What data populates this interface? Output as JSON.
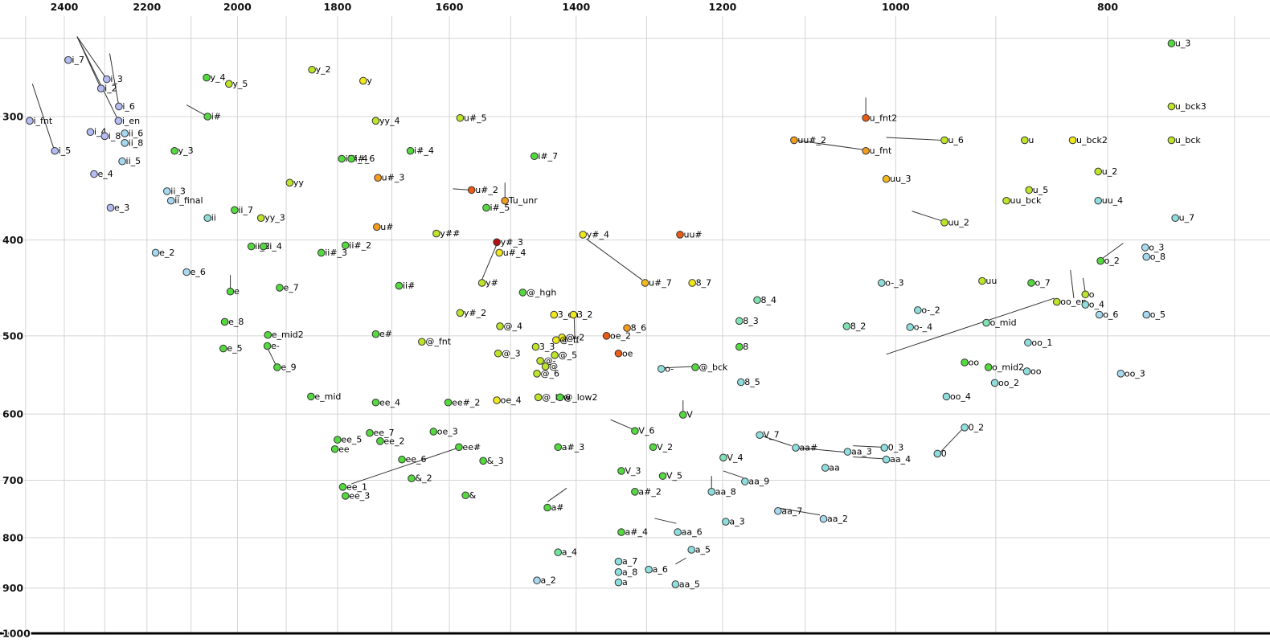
{
  "chart_data": {
    "type": "scatter",
    "title": "",
    "xlabel": "",
    "ylabel": "",
    "x_axis": {
      "reversed": true,
      "scale": "log",
      "tick_labels": [
        2400,
        2200,
        2000,
        1800,
        1600,
        1400,
        1200,
        1000,
        800
      ],
      "grid": [
        2500,
        2400,
        2300,
        2200,
        2100,
        2000,
        1900,
        1800,
        1700,
        1600,
        1500,
        1400,
        1300,
        1200,
        1100,
        1000,
        900,
        800,
        700
      ]
    },
    "y_axis": {
      "reversed": true,
      "scale": "log",
      "tick_labels": [
        300,
        400,
        500,
        600,
        700,
        800,
        900,
        1000
      ],
      "grid": [
        250,
        300,
        400,
        500,
        600,
        700,
        800,
        900,
        1000
      ],
      "baseline": 1000
    },
    "scale_anchors": {
      "x": {
        "v1": 2400,
        "p1": 80,
        "v2": 800,
        "p2": 1378
      },
      "y": {
        "v1": 300,
        "p1": 145,
        "v2": 1000,
        "p2": 788
      }
    },
    "palette": {
      "pw": "#b4bcf4",
      "lb": "#a6d9f0",
      "cy": "#8fdede",
      "aq": "#7fe2b2",
      "gr": "#54d93e",
      "sg": "#6fe59c",
      "yg": "#bce428",
      "ye": "#efe91c",
      "go": "#f2b91c",
      "or": "#f49c1c",
      "ro": "#ea5c14",
      "dr": "#b21212"
    },
    "point_style": {
      "radius": 4.3,
      "stroke": "#333333",
      "label_dx": 4.5,
      "label_dy": 3.5
    },
    "points": [
      [
        "i_fnt",
        2489,
        303,
        "pw"
      ],
      [
        "i_5",
        2424,
        325,
        "pw"
      ],
      [
        "i_7",
        2390,
        263,
        "pw"
      ],
      [
        "i_3",
        2295,
        275,
        "pw"
      ],
      [
        "i_2",
        2309,
        281,
        "pw"
      ],
      [
        "i_6",
        2266,
        293,
        "pw"
      ],
      [
        "i_en",
        2267,
        303,
        "pw"
      ],
      [
        "i_4",
        2335,
        311,
        "pw"
      ],
      [
        "i_8",
        2300,
        314,
        "pw"
      ],
      [
        "ii_6",
        2252,
        312,
        "lb"
      ],
      [
        "ii_8",
        2252,
        319,
        "lb"
      ],
      [
        "ii_5",
        2258,
        333,
        "lb"
      ],
      [
        "e_4",
        2326,
        343,
        "pw"
      ],
      [
        "e_3",
        2286,
        371,
        "pw"
      ],
      [
        "ii_3",
        2154,
        357,
        "lb"
      ],
      [
        "ii_final",
        2145,
        365,
        "lb"
      ],
      [
        "ii",
        2064,
        380,
        "cy"
      ],
      [
        "y_3",
        2137,
        325,
        "gr"
      ],
      [
        "i#",
        2064,
        300,
        "gr"
      ],
      [
        "y_4",
        2066,
        274,
        "gr"
      ],
      [
        "y_5",
        2018,
        278,
        "yg"
      ],
      [
        "e_2",
        2180,
        412,
        "lb"
      ],
      [
        "e_6",
        2110,
        431,
        "lb"
      ],
      [
        "e",
        2015,
        451,
        "gr"
      ],
      [
        "e_8",
        2027,
        484,
        "gr"
      ],
      [
        "e_5",
        2030,
        515,
        "gr"
      ],
      [
        "e_mid2",
        1937,
        499,
        "gr"
      ],
      [
        "e-",
        1938,
        512,
        "gr"
      ],
      [
        "e_9",
        1918,
        538,
        "gr"
      ],
      [
        "e_7",
        1913,
        447,
        "gr"
      ],
      [
        "yy",
        1893,
        350,
        "yg"
      ],
      [
        "yy_3",
        1951,
        380,
        "yg"
      ],
      [
        "ii_7",
        2006,
        373,
        "gr"
      ],
      [
        "ii_2",
        1971,
        406,
        "gr"
      ],
      [
        "ii_4",
        1946,
        406,
        "gr"
      ],
      [
        "ii#_3",
        1831,
        412,
        "gr"
      ],
      [
        "ii#_2",
        1785,
        405,
        "gr"
      ],
      [
        "ii#_4",
        1792,
        331,
        "gr"
      ],
      [
        "i#_6",
        1774,
        331,
        "gr"
      ],
      [
        "u#_3",
        1725,
        346,
        "or"
      ],
      [
        "u#",
        1727,
        388,
        "or"
      ],
      [
        "yy_4",
        1729,
        303,
        "yg"
      ],
      [
        "i#_4",
        1667,
        325,
        "gr"
      ],
      [
        "y_2",
        1849,
        269,
        "yg"
      ],
      [
        "y",
        1752,
        276,
        "ye"
      ],
      [
        "u#_5",
        1582,
        301,
        "yg"
      ],
      [
        "u#_2",
        1563,
        356,
        "ro"
      ],
      [
        "i#_5",
        1539,
        371,
        "gr"
      ],
      [
        "Tu_unr",
        1509,
        365,
        "or"
      ],
      [
        "i#_7",
        1463,
        329,
        "gr"
      ],
      [
        "y##",
        1622,
        394,
        "yg"
      ],
      [
        "y#_3",
        1522,
        402,
        "dr"
      ],
      [
        "u#_4",
        1518,
        412,
        "ye"
      ],
      [
        "y#_4",
        1390,
        395,
        "ye"
      ],
      [
        "uu#",
        1255,
        395,
        "ro"
      ],
      [
        "u#_7",
        1302,
        442,
        "go"
      ],
      [
        "8_7",
        1239,
        442,
        "ye"
      ],
      [
        "y#",
        1546,
        442,
        "yg"
      ],
      [
        "ii#",
        1687,
        445,
        "gr"
      ],
      [
        "y#_2",
        1582,
        474,
        "yg"
      ],
      [
        "@_hgh",
        1481,
        452,
        "gr"
      ],
      [
        "@_4",
        1517,
        489,
        "yg"
      ],
      [
        "e#",
        1729,
        498,
        "gr"
      ],
      [
        "@_fnt",
        1647,
        507,
        "yg"
      ],
      [
        "@_3",
        1520,
        521,
        "yg"
      ],
      [
        "3_en",
        1433,
        476,
        "ye"
      ],
      [
        "3_2",
        1404,
        476,
        "ye"
      ],
      [
        "@_2",
        1421,
        502,
        "ye"
      ],
      [
        "@_ff",
        1430,
        505,
        "ye"
      ],
      [
        "3_3",
        1461,
        513,
        "yg"
      ],
      [
        "@_5",
        1432,
        523,
        "yg"
      ],
      [
        "@-",
        1454,
        530,
        "yg"
      ],
      [
        "@",
        1446,
        537,
        "yg"
      ],
      [
        "@_6",
        1459,
        546,
        "yg"
      ],
      [
        "oe_2",
        1356,
        500,
        "ro"
      ],
      [
        "8_6",
        1327,
        491,
        "or"
      ],
      [
        "oe",
        1339,
        521,
        "ro"
      ],
      [
        "@_bck",
        1235,
        538,
        "gr"
      ],
      [
        "o-",
        1280,
        540,
        "cy"
      ],
      [
        "8_4",
        1157,
        460,
        "aq"
      ],
      [
        "8_3",
        1179,
        483,
        "aq"
      ],
      [
        "8",
        1179,
        513,
        "gr"
      ],
      [
        "8_2",
        1053,
        489,
        "aq"
      ],
      [
        "8_5",
        1177,
        557,
        "cy"
      ],
      [
        "o-_3",
        1015,
        442,
        "cy"
      ],
      [
        "o-_2",
        977,
        471,
        "cy"
      ],
      [
        "o-_4",
        985,
        490,
        "cy"
      ],
      [
        "o_mid",
        909,
        485,
        "aq"
      ],
      [
        "uu",
        913,
        440,
        "yg"
      ],
      [
        "o_7",
        867,
        442,
        "gr"
      ],
      [
        "oo_en",
        844,
        462,
        "yg"
      ],
      [
        "o",
        819,
        454,
        "yg"
      ],
      [
        "o_4",
        819,
        465,
        "cy"
      ],
      [
        "o_2",
        806,
        420,
        "gr"
      ],
      [
        "o_3",
        769,
        407,
        "lb"
      ],
      [
        "o_8",
        768,
        416,
        "lb"
      ],
      [
        "o_5",
        768,
        476,
        "lb"
      ],
      [
        "o_6",
        807,
        476,
        "lb"
      ],
      [
        "u_7",
        745,
        380,
        "cy"
      ],
      [
        "uu_4",
        808,
        365,
        "cy"
      ],
      [
        "u_5",
        869,
        356,
        "yg"
      ],
      [
        "uu_bck",
        890,
        365,
        "yg"
      ],
      [
        "u_2",
        808,
        341,
        "yg"
      ],
      [
        "uu_2",
        950,
        384,
        "yg"
      ],
      [
        "uu_3",
        1010,
        347,
        "go"
      ],
      [
        "u_fnt2",
        1032,
        301,
        "ro"
      ],
      [
        "uu#_2",
        1113,
        317,
        "or"
      ],
      [
        "u_fnt",
        1032,
        325,
        "or"
      ],
      [
        "u_6",
        950,
        317,
        "yg"
      ],
      [
        "u",
        873,
        317,
        "yg"
      ],
      [
        "u_bck2",
        830,
        317,
        "ye"
      ],
      [
        "u_bck",
        748,
        317,
        "yg"
      ],
      [
        "u_bck3",
        748,
        293,
        "yg"
      ],
      [
        "u_3",
        748,
        253,
        "gr"
      ],
      [
        "oo_1",
        870,
        508,
        "cy"
      ],
      [
        "oo",
        930,
        532,
        "gr"
      ],
      [
        "o_mid2",
        907,
        538,
        "gr"
      ],
      [
        "oo",
        871,
        543,
        "cy"
      ],
      [
        "oo_2",
        901,
        558,
        "cy"
      ],
      [
        "oo_3",
        789,
        546,
        "lb"
      ],
      [
        "oo_4",
        948,
        576,
        "cy"
      ],
      [
        "V",
        1251,
        601,
        "gr"
      ],
      [
        "V_6",
        1316,
        624,
        "gr"
      ],
      [
        "V_2",
        1291,
        648,
        "gr"
      ],
      [
        "V_7",
        1154,
        630,
        "cy"
      ],
      [
        "V_4",
        1199,
        664,
        "aq"
      ],
      [
        "V_3",
        1335,
        685,
        "gr"
      ],
      [
        "V_5",
        1278,
        693,
        "gr"
      ],
      [
        "aa#",
        1111,
        649,
        "cy"
      ],
      [
        "aa",
        1077,
        680,
        "cy"
      ],
      [
        "aa_3",
        1052,
        655,
        "cy"
      ],
      [
        "0_3",
        1012,
        649,
        "cy"
      ],
      [
        "aa_4",
        1010,
        667,
        "cy"
      ],
      [
        "0_2",
        930,
        619,
        "cy"
      ],
      [
        "0",
        957,
        658,
        "cy"
      ],
      [
        "a#_3",
        1427,
        648,
        "gr"
      ],
      [
        "ee_4",
        1729,
        584,
        "gr"
      ],
      [
        "ee#_2",
        1602,
        584,
        "gr"
      ],
      [
        "oe_4",
        1522,
        581,
        "ye"
      ],
      [
        "@_low",
        1457,
        577,
        "yg"
      ],
      [
        "@_low2",
        1424,
        577,
        "gr"
      ],
      [
        "e_mid",
        1851,
        576,
        "gr"
      ],
      [
        "oe_3",
        1627,
        625,
        "gr"
      ],
      [
        "ee_7",
        1740,
        627,
        "gr"
      ],
      [
        "ee_2",
        1721,
        639,
        "gr"
      ],
      [
        "ee_5",
        1800,
        637,
        "gr"
      ],
      [
        "ee",
        1805,
        651,
        "gr"
      ],
      [
        "ee#",
        1584,
        648,
        "gr"
      ],
      [
        "&_3",
        1544,
        669,
        "gr"
      ],
      [
        "ee_6",
        1682,
        667,
        "gr"
      ],
      [
        "&_2",
        1665,
        697,
        "gr"
      ],
      [
        "ee_1",
        1790,
        711,
        "gr"
      ],
      [
        "ee_3",
        1785,
        726,
        "gr"
      ],
      [
        "&",
        1573,
        725,
        "gr"
      ],
      [
        "a#",
        1443,
        746,
        "gr"
      ],
      [
        "a#_2",
        1316,
        719,
        "gr"
      ],
      [
        "aa_8",
        1214,
        719,
        "cy"
      ],
      [
        "aa_9",
        1172,
        702,
        "cy"
      ],
      [
        "a_3",
        1196,
        771,
        "cy"
      ],
      [
        "aa_7",
        1132,
        752,
        "lb"
      ],
      [
        "aa_2",
        1079,
        766,
        "lb"
      ],
      [
        "a#_4",
        1335,
        790,
        "gr"
      ],
      [
        "aa_6",
        1258,
        790,
        "cy"
      ],
      [
        "a_5",
        1240,
        823,
        "cy"
      ],
      [
        "a_4",
        1427,
        828,
        "sg"
      ],
      [
        "a_7",
        1339,
        846,
        "cy"
      ],
      [
        "a_8",
        1339,
        867,
        "cy"
      ],
      [
        "a_6",
        1297,
        862,
        "cy"
      ],
      [
        "a_2",
        1459,
        884,
        "lb"
      ],
      [
        "a",
        1339,
        888,
        "cy"
      ],
      [
        "aa_5",
        1261,
        892,
        "cy"
      ]
    ],
    "segments": [
      [
        2368,
        249,
        2295,
        275
      ],
      [
        2368,
        249,
        2309,
        281
      ],
      [
        2368,
        249,
        2267,
        303
      ],
      [
        2288,
        259,
        2266,
        293
      ],
      [
        2482,
        278,
        2427,
        323
      ],
      [
        2110,
        292,
        2064,
        300
      ],
      [
        2015,
        434,
        2015,
        450
      ],
      [
        1938,
        514,
        1920,
        536
      ],
      [
        1594,
        355,
        1566,
        356
      ],
      [
        1522,
        404,
        1547,
        440
      ],
      [
        1509,
        350,
        1509,
        363
      ],
      [
        1385,
        399,
        1306,
        439
      ],
      [
        1403,
        478,
        1402,
        504
      ],
      [
        1280,
        539,
        1238,
        537
      ],
      [
        1010,
        522,
        846,
        458
      ],
      [
        983,
        374,
        951,
        383
      ],
      [
        1111,
        317,
        1035,
        324
      ],
      [
        1010,
        315,
        953,
        317
      ],
      [
        1032,
        287,
        1032,
        300
      ],
      [
        805,
        418,
        787,
        403
      ],
      [
        832,
        429,
        829,
        458
      ],
      [
        821,
        437,
        819,
        452
      ],
      [
        1251,
        581,
        1251,
        599
      ],
      [
        1350,
        608,
        1318,
        622
      ],
      [
        1152,
        631,
        1116,
        646
      ],
      [
        1109,
        649,
        1052,
        656
      ],
      [
        1046,
        646,
        1016,
        648
      ],
      [
        1046,
        663,
        1012,
        666
      ],
      [
        958,
        662,
        932,
        621
      ],
      [
        1774,
        706,
        1585,
        649
      ],
      [
        1443,
        736,
        1414,
        713
      ],
      [
        1214,
        693,
        1214,
        717
      ],
      [
        1199,
        685,
        1174,
        696
      ],
      [
        1130,
        747,
        1083,
        759
      ],
      [
        1289,
        765,
        1260,
        774
      ],
      [
        1261,
        851,
        1247,
        839
      ]
    ],
    "grid_color": "#d4d4d4",
    "baseline_color": "#000000",
    "segment_color": "#333333"
  }
}
